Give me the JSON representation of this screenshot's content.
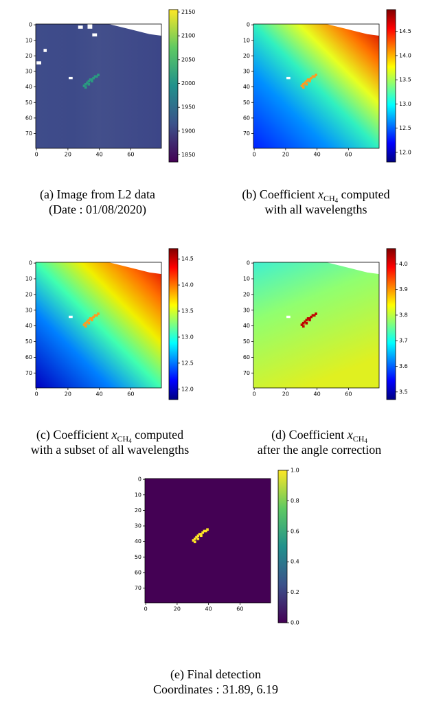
{
  "panels": [
    {
      "caption": [
        [
          {
            "text": "(a) Image from L2 data"
          }
        ],
        [
          {
            "text": "(Date : 01/08/2020)"
          }
        ]
      ],
      "cmap": "viridis",
      "xlim": [
        -0.5,
        79.5
      ],
      "ylim": [
        79.5,
        -0.5
      ],
      "xticks": [
        0,
        20,
        40,
        60
      ],
      "yticks": [
        0,
        10,
        20,
        30,
        40,
        50,
        60,
        70
      ],
      "clim": [
        1835,
        2155
      ],
      "cticks": [
        1850,
        1900,
        1950,
        2000,
        2050,
        2100,
        2150
      ]
    },
    {
      "caption": [
        [
          {
            "text": "(b) Coefficient "
          },
          {
            "math": "x",
            "sub": "CH",
            "subsub": "4"
          },
          {
            "text": " computed"
          }
        ],
        [
          {
            "text": "with all wavelengths"
          }
        ]
      ],
      "cmap": "jet",
      "xlim": [
        -0.5,
        79.5
      ],
      "ylim": [
        79.5,
        -0.5
      ],
      "xticks": [
        0,
        20,
        40,
        60
      ],
      "yticks": [
        0,
        10,
        20,
        30,
        40,
        50,
        60,
        70
      ],
      "clim": [
        11.8,
        14.95
      ],
      "cticks": [
        {
          "value": 12,
          "label": "12.0"
        },
        12.5,
        {
          "value": 13,
          "label": "13.0"
        },
        13.5,
        {
          "value": 14,
          "label": "14.0"
        },
        14.5
      ]
    },
    {
      "caption": [
        [
          {
            "text": "(c) Coefficient "
          },
          {
            "math": "x",
            "sub": "CH",
            "subsub": "4"
          },
          {
            "text": " computed"
          }
        ],
        [
          {
            "text": "with a subset of all wavelengths"
          }
        ]
      ],
      "cmap": "jet",
      "xlim": [
        -0.5,
        79.5
      ],
      "ylim": [
        79.5,
        -0.5
      ],
      "xticks": [
        0,
        20,
        40,
        60
      ],
      "yticks": [
        0,
        10,
        20,
        30,
        40,
        50,
        60,
        70
      ],
      "clim": [
        11.8,
        14.7
      ],
      "cticks": [
        {
          "value": 12,
          "label": "12.0"
        },
        12.5,
        {
          "value": 13,
          "label": "13.0"
        },
        13.5,
        {
          "value": 14,
          "label": "14.0"
        },
        14.5
      ]
    },
    {
      "caption": [
        [
          {
            "text": "(d) Coefficient "
          },
          {
            "math": "x",
            "sub": "CH",
            "subsub": "4"
          }
        ],
        [
          {
            "text": "after the angle correction"
          }
        ]
      ],
      "cmap": "jet",
      "xlim": [
        -0.5,
        79.5
      ],
      "ylim": [
        79.5,
        -0.5
      ],
      "xticks": [
        0,
        20,
        40,
        60
      ],
      "yticks": [
        0,
        10,
        20,
        30,
        40,
        50,
        60,
        70
      ],
      "clim": [
        3.47,
        4.06
      ],
      "cticks": [
        3.5,
        3.6,
        3.7,
        3.8,
        3.9,
        {
          "value": 4,
          "label": "4.0"
        }
      ]
    },
    {
      "caption": [
        [
          {
            "text": "(e) Final detection"
          }
        ],
        [
          {
            "text": "Coordinates : 31.89, 6.19"
          }
        ]
      ],
      "cmap": "viridis",
      "xlim": [
        -0.5,
        79.5
      ],
      "ylim": [
        79.5,
        -0.5
      ],
      "xticks": [
        0,
        20,
        40,
        60
      ],
      "yticks": [
        0,
        10,
        20,
        30,
        40,
        50,
        60,
        70
      ],
      "clim": [
        0,
        1
      ],
      "cticks": [
        {
          "value": 0,
          "label": "0.0"
        },
        0.2,
        0.4,
        0.6,
        0.8,
        {
          "value": 1,
          "label": "1.0"
        }
      ]
    }
  ]
}
